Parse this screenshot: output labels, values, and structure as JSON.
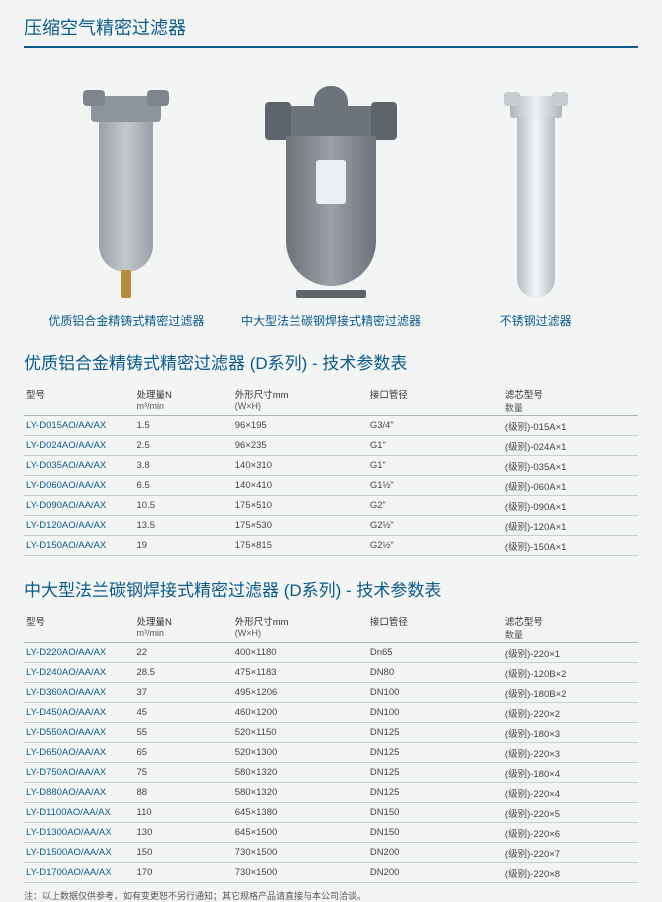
{
  "mainTitle": "压缩空气精密过滤器",
  "products": [
    {
      "caption": "优质铝合金精铸式精密过滤器"
    },
    {
      "caption": "中大型法兰碳钢焊接式精密过滤器"
    },
    {
      "caption": "不锈钢过滤器"
    }
  ],
  "table1": {
    "title": "优质铝合金精铸式精密过滤器 (D系列) - 技术参数表",
    "headers": {
      "model": "型号",
      "flow": "处理量N",
      "flow_sub": "m³/min",
      "size": "外形尺寸mm",
      "size_sub": "(W×H)",
      "port": "接口管径",
      "cartridge": "滤芯型号",
      "cartridge_sub": "数量"
    },
    "rows": [
      [
        "LY-D015AO/AA/AX",
        "1.5",
        "96×195",
        "G3/4\"",
        "(级别)-015A×1"
      ],
      [
        "LY-D024AO/AA/AX",
        "2.5",
        "96×235",
        "G1\"",
        "(级别)-024A×1"
      ],
      [
        "LY-D035AO/AA/AX",
        "3.8",
        "140×310",
        "G1\"",
        "(级别)-035A×1"
      ],
      [
        "LY-D060AO/AA/AX",
        "6.5",
        "140×410",
        "G1½\"",
        "(级别)-060A×1"
      ],
      [
        "LY-D090AO/AA/AX",
        "10.5",
        "175×510",
        "G2\"",
        "(级别)-090A×1"
      ],
      [
        "LY-D120AO/AA/AX",
        "13.5",
        "175×530",
        "G2½\"",
        "(级别)-120A×1"
      ],
      [
        "LY-D150AO/AA/AX",
        "19",
        "175×815",
        "G2½\"",
        "(级别)-150A×1"
      ]
    ]
  },
  "table2": {
    "title": "中大型法兰碳钢焊接式精密过滤器 (D系列) - 技术参数表",
    "headers": {
      "model": "型号",
      "flow": "处理量N",
      "flow_sub": "m³/min",
      "size": "外形尺寸mm",
      "size_sub": "(W×H)",
      "port": "接口管径",
      "cartridge": "滤芯型号",
      "cartridge_sub": "数量"
    },
    "rows": [
      [
        "LY-D220AO/AA/AX",
        "22",
        "400×1180",
        "Dn65",
        "(级别)-220×1"
      ],
      [
        "LY-D240AO/AA/AX",
        "28.5",
        "475×1183",
        "DN80",
        "(级别)-120B×2"
      ],
      [
        "LY-D360AO/AA/AX",
        "37",
        "495×1206",
        "DN100",
        "(级别)-180B×2"
      ],
      [
        "LY-D450AO/AA/AX",
        "45",
        "460×1200",
        "DN100",
        "(级别)-220×2"
      ],
      [
        "LY-D550AO/AA/AX",
        "55",
        "520×1150",
        "DN125",
        "(级别)-180×3"
      ],
      [
        "LY-D650AO/AA/AX",
        "65",
        "520×1300",
        "DN125",
        "(级别)-220×3"
      ],
      [
        "LY-D750AO/AA/AX",
        "75",
        "580×1320",
        "DN125",
        "(级别)-180×4"
      ],
      [
        "LY-D880AO/AA/AX",
        "88",
        "580×1320",
        "DN125",
        "(级别)-220×4"
      ],
      [
        "LY-D1100AO/AA/AX",
        "110",
        "645×1380",
        "DN150",
        "(级别)-220×5"
      ],
      [
        "LY-D1300AO/AA/AX",
        "130",
        "645×1500",
        "DN150",
        "(级别)-220×6"
      ],
      [
        "LY-D1500AO/AA/AX",
        "150",
        "730×1500",
        "DN200",
        "(级别)-220×7"
      ],
      [
        "LY-D1700AO/AA/AX",
        "170",
        "730×1500",
        "DN200",
        "(级别)-220×8"
      ]
    ]
  },
  "note": "注：以上数据仅供参考，如有变更恕不另行通知；其它规格产品请直接与本公司洽谈。"
}
